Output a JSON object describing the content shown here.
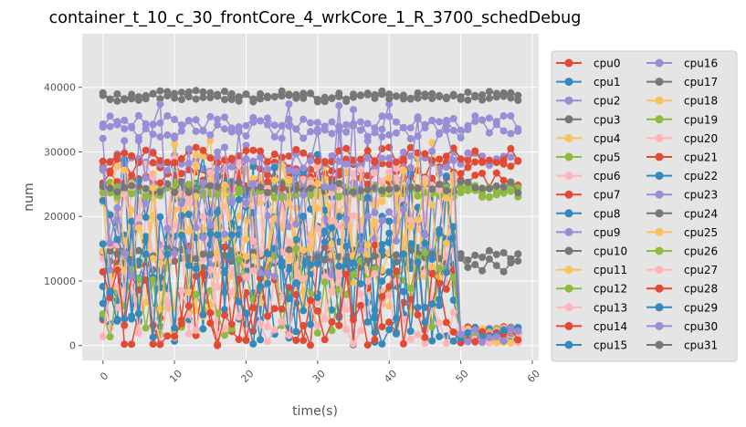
{
  "chart_data": {
    "type": "line",
    "title": "container_t_10_c_30_frontCore_4_wrkCore_1_R_3700_schedDebug",
    "xlabel": "time(s)",
    "ylabel": "num",
    "xlim": [
      -2.9,
      60.9
    ],
    "ylim": [
      -2300,
      48300
    ],
    "xticks": [
      "0",
      "10",
      "20",
      "30",
      "40",
      "50",
      "60"
    ],
    "yticks": [
      "0",
      "10000",
      "20000",
      "30000",
      "40000"
    ],
    "grid": true,
    "legend_position": "right",
    "legend_columns": 2,
    "x": [
      0,
      1,
      2,
      3,
      4,
      5,
      6,
      7,
      8,
      9,
      10,
      11,
      12,
      13,
      14,
      15,
      16,
      17,
      18,
      19,
      20,
      21,
      22,
      23,
      24,
      25,
      26,
      27,
      28,
      29,
      30,
      31,
      32,
      33,
      34,
      35,
      36,
      37,
      38,
      39,
      40,
      41,
      42,
      43,
      44,
      45,
      46,
      47,
      48,
      49,
      50,
      51,
      52,
      53,
      54,
      55,
      56,
      57,
      58
    ],
    "series": [
      {
        "name": "cpu0",
        "color": "#E24A33",
        "shape": "high",
        "base": 27500,
        "amp": 1500,
        "seed": 1
      },
      {
        "name": "cpu1",
        "color": "#348ABD",
        "shape": "noisy",
        "base": 12000,
        "amp": 12000,
        "seed": 2
      },
      {
        "name": "cpu2",
        "color": "#988ED5",
        "shape": "high",
        "base": 34500,
        "amp": 1200,
        "seed": 3
      },
      {
        "name": "cpu3",
        "color": "#777777",
        "shape": "high",
        "base": 12500,
        "amp": 1200,
        "seed": 4
      },
      {
        "name": "cpu4",
        "color": "#FBC15E",
        "shape": "noisy",
        "base": 15000,
        "amp": 12000,
        "seed": 5
      },
      {
        "name": "cpu5",
        "color": "#8EBA42",
        "shape": "flat",
        "base": 24000,
        "amp": 1000,
        "seed": 6
      },
      {
        "name": "cpu6",
        "color": "#FFB5B8",
        "shape": "noisy",
        "base": 12000,
        "amp": 12000,
        "seed": 7
      },
      {
        "name": "cpu7",
        "color": "#E24A33",
        "shape": "high",
        "base": 25500,
        "amp": 1500,
        "seed": 8
      },
      {
        "name": "cpu8",
        "color": "#348ABD",
        "shape": "noisy",
        "base": 14000,
        "amp": 14000,
        "seed": 9
      },
      {
        "name": "cpu9",
        "color": "#988ED5",
        "shape": "high",
        "base": 28500,
        "amp": 1500,
        "seed": 10
      },
      {
        "name": "cpu10",
        "color": "#777777",
        "shape": "high",
        "base": 38500,
        "amp": 800,
        "seed": 11
      },
      {
        "name": "cpu11",
        "color": "#FBC15E",
        "shape": "noisy",
        "base": 18000,
        "amp": 10000,
        "seed": 12
      },
      {
        "name": "cpu12",
        "color": "#8EBA42",
        "shape": "flat",
        "base": 24500,
        "amp": 1000,
        "seed": 13
      },
      {
        "name": "cpu13",
        "color": "#FFB5B8",
        "shape": "noisy",
        "base": 16000,
        "amp": 10000,
        "seed": 14
      },
      {
        "name": "cpu14",
        "color": "#E24A33",
        "shape": "noisy",
        "base": 8000,
        "amp": 8000,
        "seed": 15
      },
      {
        "name": "cpu15",
        "color": "#348ABD",
        "shape": "noisy",
        "base": 16000,
        "amp": 14000,
        "seed": 16
      },
      {
        "name": "cpu16",
        "color": "#988ED5",
        "shape": "noisy",
        "base": 22000,
        "amp": 12000,
        "seed": 17
      },
      {
        "name": "cpu17",
        "color": "#777777",
        "shape": "high",
        "base": 14000,
        "amp": 900,
        "seed": 18
      },
      {
        "name": "cpu18",
        "color": "#FBC15E",
        "shape": "noisy",
        "base": 20000,
        "amp": 12000,
        "seed": 19
      },
      {
        "name": "cpu19",
        "color": "#8EBA42",
        "shape": "flat",
        "base": 23800,
        "amp": 900,
        "seed": 20
      },
      {
        "name": "cpu20",
        "color": "#FFB5B8",
        "shape": "noisy",
        "base": 20000,
        "amp": 9000,
        "seed": 21
      },
      {
        "name": "cpu21",
        "color": "#E24A33",
        "shape": "high",
        "base": 29500,
        "amp": 1200,
        "seed": 22
      },
      {
        "name": "cpu22",
        "color": "#348ABD",
        "shape": "noisy",
        "base": 12000,
        "amp": 12000,
        "seed": 23
      },
      {
        "name": "cpu23",
        "color": "#988ED5",
        "shape": "high",
        "base": 33500,
        "amp": 1500,
        "seed": 24
      },
      {
        "name": "cpu24",
        "color": "#777777",
        "shape": "high",
        "base": 24500,
        "amp": 900,
        "seed": 25
      },
      {
        "name": "cpu25",
        "color": "#FBC15E",
        "shape": "noisy",
        "base": 16000,
        "amp": 12000,
        "seed": 26
      },
      {
        "name": "cpu26",
        "color": "#8EBA42",
        "shape": "noisy",
        "base": 8000,
        "amp": 7000,
        "seed": 27
      },
      {
        "name": "cpu27",
        "color": "#FFB5B8",
        "shape": "noisy",
        "base": 6000,
        "amp": 6000,
        "seed": 28
      },
      {
        "name": "cpu28",
        "color": "#E24A33",
        "shape": "noisy",
        "base": 6000,
        "amp": 6000,
        "seed": 29
      },
      {
        "name": "cpu29",
        "color": "#348ABD",
        "shape": "noisy",
        "base": 10000,
        "amp": 10000,
        "seed": 30
      },
      {
        "name": "cpu30",
        "color": "#988ED5",
        "shape": "noisy",
        "base": 24000,
        "amp": 14000,
        "seed": 31
      },
      {
        "name": "cpu31",
        "color": "#777777",
        "shape": "high",
        "base": 38800,
        "amp": 700,
        "seed": 32
      }
    ]
  }
}
